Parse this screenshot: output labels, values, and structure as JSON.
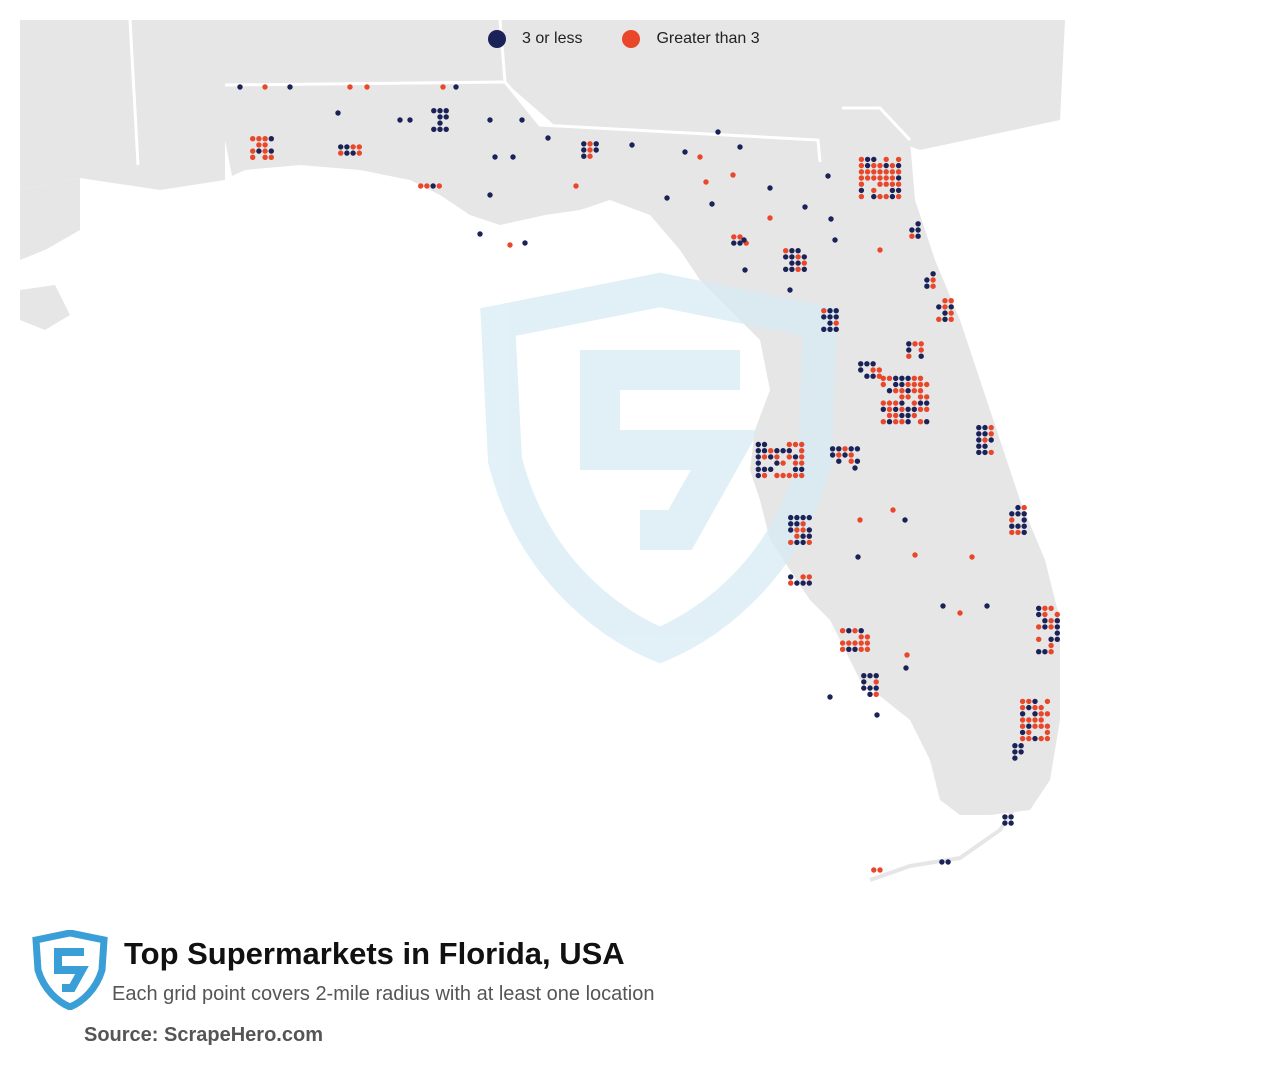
{
  "title": "Top Supermarkets in Florida, USA",
  "subtitle": "Each grid point covers 2-mile radius with at least one location",
  "source": "Source: ScrapeHero.com",
  "legend": [
    {
      "label": "3 or less",
      "color": "#1b2257"
    },
    {
      "label": "Greater than 3",
      "color": "#e8472a"
    }
  ],
  "colors": {
    "land": "#e6e6e6",
    "water": "#ffffff",
    "border": "#ffffff",
    "watermark": "#d8ebf5",
    "logo": "#3a9fd6"
  },
  "icons": {
    "brand_logo": "scrapehero-shield-icon",
    "watermark": "scrapehero-shield-watermark-icon"
  }
}
